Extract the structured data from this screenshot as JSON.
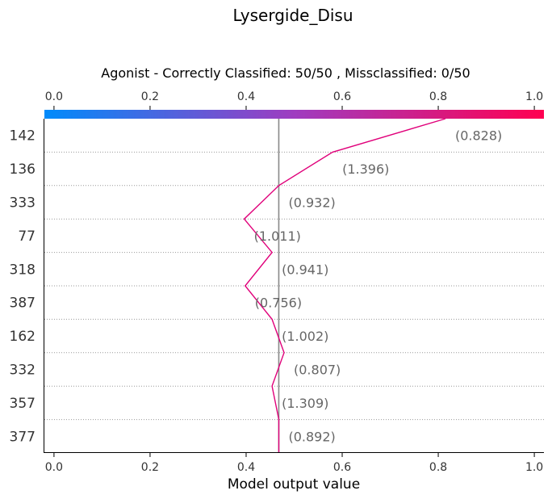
{
  "chart_data": {
    "type": "line",
    "title": "Lysergide_Disu",
    "subtitle": "Agonist - Correctly Classified: 50/50 , Missclassified: 0/50",
    "xlabel": "Model output value",
    "xlim": [
      -0.02,
      1.02
    ],
    "xticks": [
      "0.0",
      "0.2",
      "0.4",
      "0.6",
      "0.8",
      "1.0"
    ],
    "base_value": 0.468,
    "colorbar": {
      "from_color": "#008bfb",
      "to_color": "#ff0051",
      "range": [
        0.0,
        1.0
      ]
    },
    "features": [
      {
        "name": "142",
        "value": "(0.828)"
      },
      {
        "name": "136",
        "value": "(1.396)"
      },
      {
        "name": "333",
        "value": "(0.932)"
      },
      {
        "name": "77",
        "value": "(1.011)"
      },
      {
        "name": "318",
        "value": "(0.941)"
      },
      {
        "name": "387",
        "value": "(0.756)"
      },
      {
        "name": "162",
        "value": "(1.002)"
      },
      {
        "name": "332",
        "value": "(0.807)"
      },
      {
        "name": "357",
        "value": "(1.309)"
      },
      {
        "name": "377",
        "value": "(0.892)"
      }
    ],
    "path_x": [
      0.815,
      0.58,
      0.468,
      0.396,
      0.454,
      0.398,
      0.454,
      0.479,
      0.454,
      0.468
    ],
    "colors": {
      "path": "#e0007a",
      "base_line": "#888888",
      "grid": "#999999"
    }
  }
}
